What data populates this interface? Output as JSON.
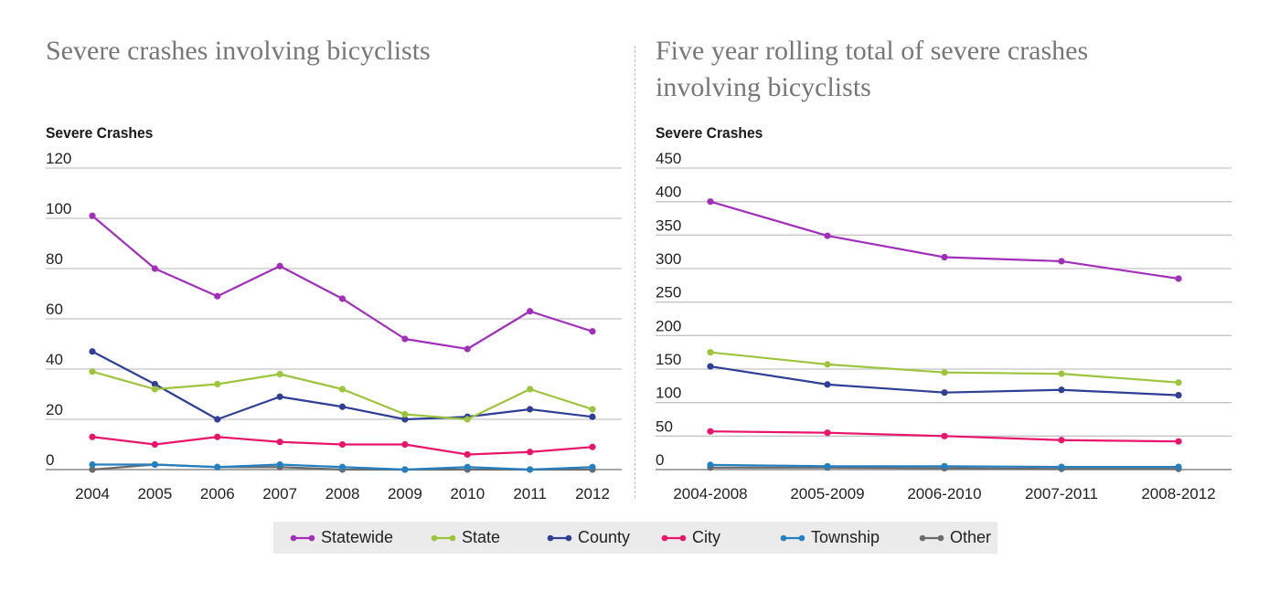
{
  "legend": {
    "items": [
      {
        "name": "Statewide",
        "color": "#a22fba"
      },
      {
        "name": "State",
        "color": "#9cc43c"
      },
      {
        "name": "County",
        "color": "#2e3f95"
      },
      {
        "name": "City",
        "color": "#e8156b"
      },
      {
        "name": "Township",
        "color": "#2580c0"
      },
      {
        "name": "Other",
        "color": "#6b6b6b"
      }
    ]
  },
  "chart_data": [
    {
      "type": "line",
      "title": "Severe crashes involving bicyclists",
      "xlabel": "",
      "ylabel": "Severe Crashes",
      "ylim": [
        0,
        120
      ],
      "yticks": [
        0,
        20,
        40,
        60,
        80,
        100,
        120
      ],
      "grid": true,
      "legend_position": "bottom",
      "categories": [
        "2004",
        "2005",
        "2006",
        "2007",
        "2008",
        "2009",
        "2010",
        "2011",
        "2012"
      ],
      "series": [
        {
          "name": "Statewide",
          "color": "#a22fba",
          "values": [
            101,
            80,
            69,
            81,
            68,
            52,
            48,
            63,
            55
          ]
        },
        {
          "name": "State",
          "color": "#9cc43c",
          "values": [
            39,
            32,
            34,
            38,
            32,
            22,
            20,
            32,
            24
          ]
        },
        {
          "name": "County",
          "color": "#2e3f95",
          "values": [
            47,
            34,
            20,
            29,
            25,
            20,
            21,
            24,
            21
          ]
        },
        {
          "name": "City",
          "color": "#e8156b",
          "values": [
            13,
            10,
            13,
            11,
            10,
            10,
            6,
            7,
            9
          ]
        },
        {
          "name": "Township",
          "color": "#2580c0",
          "values": [
            2,
            2,
            1,
            2,
            1,
            0,
            1,
            0,
            1
          ]
        },
        {
          "name": "Other",
          "color": "#6b6b6b",
          "values": [
            0,
            2,
            1,
            1,
            0,
            0,
            0,
            0,
            0
          ]
        }
      ]
    },
    {
      "type": "line",
      "title": "Five year rolling total of severe crashes involving bicyclists",
      "xlabel": "",
      "ylabel": "Severe Crashes",
      "ylim": [
        0,
        450
      ],
      "yticks": [
        0,
        50,
        100,
        150,
        200,
        250,
        300,
        350,
        400,
        450
      ],
      "grid": true,
      "legend_position": "bottom",
      "categories": [
        "2004-2008",
        "2005-2009",
        "2006-2010",
        "2007-2011",
        "2008-2012"
      ],
      "series": [
        {
          "name": "Statewide",
          "color": "#a22fba",
          "values": [
            400,
            349,
            317,
            311,
            285
          ]
        },
        {
          "name": "State",
          "color": "#9cc43c",
          "values": [
            175,
            157,
            145,
            143,
            130
          ]
        },
        {
          "name": "County",
          "color": "#2e3f95",
          "values": [
            154,
            127,
            115,
            119,
            111
          ]
        },
        {
          "name": "City",
          "color": "#e8156b",
          "values": [
            57,
            55,
            50,
            44,
            42
          ]
        },
        {
          "name": "Township",
          "color": "#2580c0",
          "values": [
            7,
            5,
            5,
            4,
            4
          ]
        },
        {
          "name": "Other",
          "color": "#6b6b6b",
          "values": [
            3,
            3,
            2,
            1,
            1
          ]
        }
      ]
    }
  ]
}
